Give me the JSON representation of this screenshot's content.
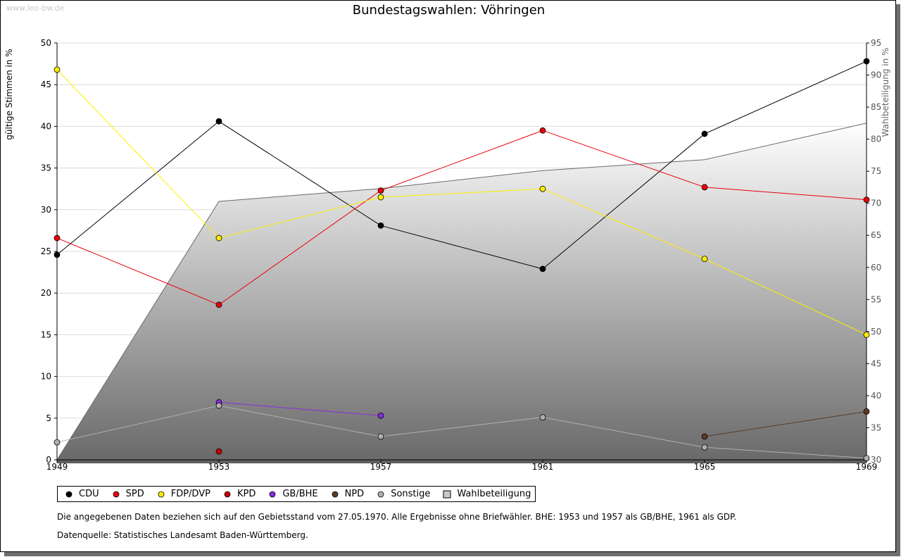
{
  "watermark": "www.leo-bw.de",
  "notes": {
    "line1": "Die angegebenen Daten beziehen sich auf den Gebietsstand vom 27.05.1970. Alle Ergebnisse ohne Briefwähler. BHE: 1953 und 1957 als GB/BHE, 1961 als GDP.",
    "line2": "Datenquelle: Statistisches Landesamt Baden-Württemberg."
  },
  "chart_data": {
    "type": "line",
    "title": "Bundestagswahlen: Vöhringen",
    "xlabel": "",
    "ylabel": "gültige Stimmen in %",
    "y2label": "Wahlbeteiligung in %",
    "categories": [
      "1949",
      "1953",
      "1957",
      "1961",
      "1965",
      "1969"
    ],
    "ylim": [
      0,
      50
    ],
    "y2lim": [
      30,
      95
    ],
    "yticks": [
      0,
      5,
      10,
      15,
      20,
      25,
      30,
      35,
      40,
      45,
      50
    ],
    "y2ticks": [
      30,
      35,
      40,
      45,
      50,
      55,
      60,
      65,
      70,
      75,
      80,
      85,
      90,
      95
    ],
    "grid": true,
    "legend_position": "bottom",
    "series": [
      {
        "name": "CDU",
        "color": "#000000",
        "values": [
          24.6,
          40.6,
          28.1,
          22.9,
          39.1,
          47.8
        ]
      },
      {
        "name": "SPD",
        "color": "#e8000b",
        "values": [
          26.6,
          18.6,
          32.3,
          39.5,
          32.7,
          31.2
        ]
      },
      {
        "name": "FDP/DVP",
        "color": "#ffee00",
        "values": [
          46.8,
          26.6,
          31.5,
          32.5,
          24.1,
          15.0
        ]
      },
      {
        "name": "KPD",
        "color": "#c80000",
        "values": [
          null,
          1.0,
          null,
          null,
          null,
          null
        ]
      },
      {
        "name": "GB/BHE",
        "color": "#8a2be2",
        "values": [
          null,
          6.9,
          5.3,
          null,
          null,
          null
        ]
      },
      {
        "name": "NPD",
        "color": "#5a3b28",
        "values": [
          null,
          null,
          null,
          null,
          2.8,
          5.8
        ]
      },
      {
        "name": "Sonstige",
        "color": "#b0b0b0",
        "values": [
          2.1,
          6.5,
          2.8,
          5.1,
          1.5,
          0.2
        ]
      }
    ],
    "turnout": {
      "name": "Wahlbeteiligung",
      "axis": "right",
      "values": [
        30.0,
        70.3,
        72.3,
        75.1,
        76.8,
        82.5
      ]
    }
  }
}
